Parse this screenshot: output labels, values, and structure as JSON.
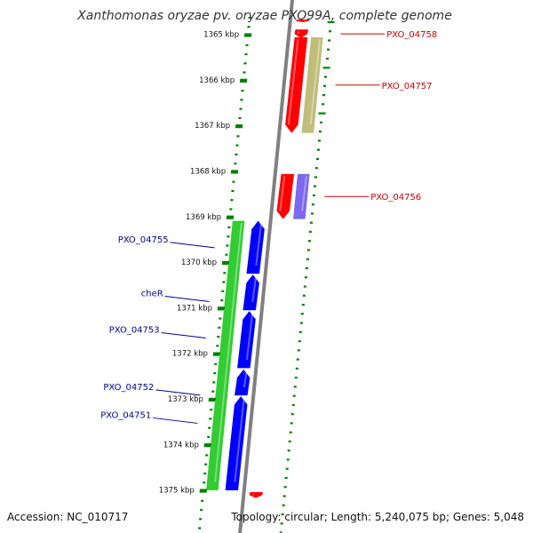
{
  "title": "Xanthomonas oryzae pv. oryzae PXO99A, complete genome",
  "footer": {
    "accession": "Accession: NC_010717",
    "summary": "Topology: circular; Length: 5,240,075 bp; Genes: 5,048"
  },
  "colors": {
    "backbone": "#808080",
    "tick": "#008000",
    "red": "#ff0000",
    "olive": "#c0bd7a",
    "purple": "#7b68ee",
    "green": "#33cc33",
    "blue": "#0000ff",
    "label_right": "#cc0000",
    "label_left": "#000099"
  },
  "scale": {
    "unit": "kbp",
    "ticks": [
      {
        "kbp": 1365,
        "label": "1365 kbp"
      },
      {
        "kbp": 1366,
        "label": "1366 kbp"
      },
      {
        "kbp": 1367,
        "label": "1367 kbp"
      },
      {
        "kbp": 1368,
        "label": "1368 kbp"
      },
      {
        "kbp": 1369,
        "label": "1369 kbp"
      },
      {
        "kbp": 1370,
        "label": "1370 kbp"
      },
      {
        "kbp": 1371,
        "label": "1371 kbp"
      },
      {
        "kbp": 1372,
        "label": "1372 kbp"
      },
      {
        "kbp": 1373,
        "label": "1373 kbp"
      },
      {
        "kbp": 1374,
        "label": "1374 kbp"
      },
      {
        "kbp": 1375,
        "label": "1375 kbp"
      }
    ]
  },
  "features": [
    {
      "label": "",
      "strand": "right",
      "kind": "gene",
      "start": 1364.68,
      "end": 1364.73,
      "direction": "down"
    },
    {
      "label": "PXO_04758",
      "strand": "right",
      "kind": "gene",
      "start": 1364.9,
      "end": 1365.08,
      "direction": "down"
    },
    {
      "label": "PXO_04757",
      "strand": "right",
      "kind": "gene",
      "start": 1365.07,
      "end": 1367.16,
      "direction": "down"
    },
    {
      "label": "",
      "strand": "right",
      "kind": "cds",
      "start": 1365.07,
      "end": 1367.16,
      "direction": "none"
    },
    {
      "label": "PXO_04756",
      "strand": "right",
      "kind": "gene",
      "start": 1368.07,
      "end": 1369.05,
      "direction": "down"
    },
    {
      "label": "",
      "strand": "right",
      "kind": "misc",
      "start": 1368.07,
      "end": 1369.05,
      "direction": "none"
    },
    {
      "label": "PXO_04755",
      "strand": "left",
      "kind": "gene",
      "start": 1369.1,
      "end": 1370.25,
      "direction": "up"
    },
    {
      "label": "cheR",
      "strand": "left",
      "kind": "gene",
      "start": 1370.28,
      "end": 1371.05,
      "direction": "up"
    },
    {
      "label": "PXO_04753",
      "strand": "left",
      "kind": "gene",
      "start": 1371.08,
      "end": 1372.32,
      "direction": "up"
    },
    {
      "label": "PXO_04752",
      "strand": "left",
      "kind": "gene",
      "start": 1372.36,
      "end": 1372.92,
      "direction": "up"
    },
    {
      "label": "PXO_04751",
      "strand": "left",
      "kind": "gene",
      "start": 1372.95,
      "end": 1375.0,
      "direction": "up"
    },
    {
      "label": "",
      "strand": "left",
      "kind": "cds",
      "start": 1369.1,
      "end": 1375.0,
      "direction": "none"
    },
    {
      "label": "",
      "strand": "right",
      "kind": "gene",
      "start": 1375.05,
      "end": 1375.17,
      "direction": "down"
    }
  ]
}
